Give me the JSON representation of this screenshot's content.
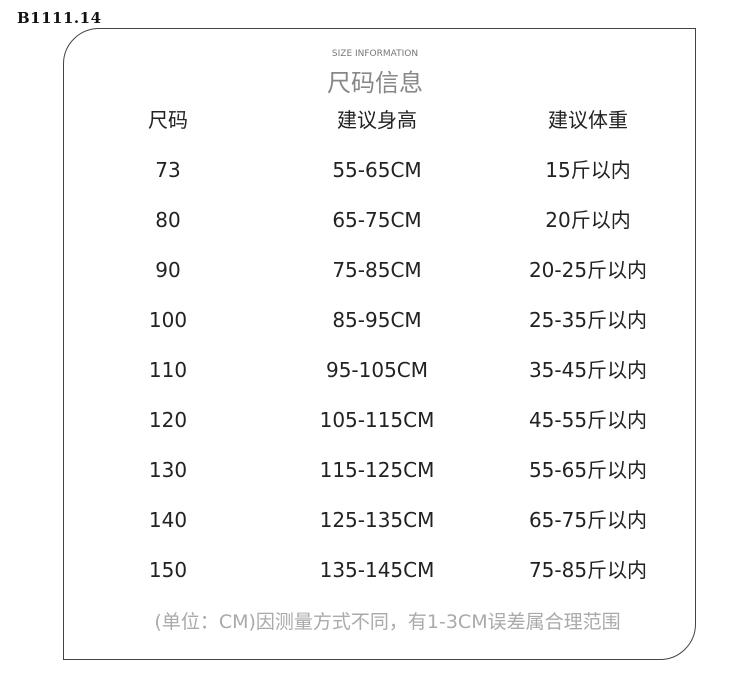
{
  "code": "B1111.14",
  "subtitle": "SIZE INFORMATION",
  "title": "尺码信息",
  "headers": [
    "尺码",
    "建议身高",
    "建议体重"
  ],
  "rows": [
    [
      "73",
      "55-65CM",
      "15斤以内"
    ],
    [
      "80",
      "65-75CM",
      "20斤以内"
    ],
    [
      "90",
      "75-85CM",
      "20-25斤以内"
    ],
    [
      "100",
      "85-95CM",
      "25-35斤以内"
    ],
    [
      "110",
      "95-105CM",
      "35-45斤以内"
    ],
    [
      "120",
      "105-115CM",
      "45-55斤以内"
    ],
    [
      "130",
      "115-125CM",
      "55-65斤以内"
    ],
    [
      "140",
      "125-135CM",
      "65-75斤以内"
    ],
    [
      "150",
      "135-145CM",
      "75-85斤以内"
    ]
  ],
  "note": "(单位：CM)因测量方式不同，有1-3CM误差属合理范围"
}
